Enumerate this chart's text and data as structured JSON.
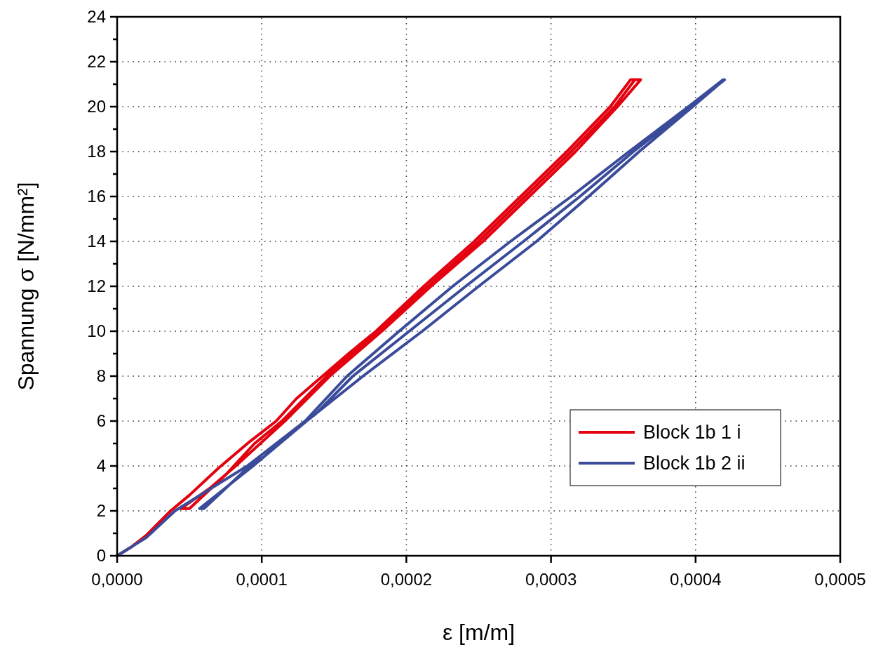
{
  "chart_data": {
    "type": "line",
    "xlabel": "ε [m/m]",
    "ylabel": "Spannung σ [N/mm²]",
    "xlim": [
      0,
      0.0005
    ],
    "ylim": [
      0,
      24
    ],
    "xticks": [
      {
        "value": 0,
        "label": "0,0000"
      },
      {
        "value": 0.0001,
        "label": "0,0001"
      },
      {
        "value": 0.0002,
        "label": "0,0002"
      },
      {
        "value": 0.0003,
        "label": "0,0003"
      },
      {
        "value": 0.0004,
        "label": "0,0004"
      },
      {
        "value": 0.0005,
        "label": "0,0005"
      }
    ],
    "yticks": [
      0,
      {
        "value": 1,
        "label": null
      },
      2,
      {
        "value": 3,
        "label": null
      },
      4,
      {
        "value": 5,
        "label": null
      },
      6,
      {
        "value": 7,
        "label": null
      },
      8,
      {
        "value": 9,
        "label": null
      },
      10,
      {
        "value": 11,
        "label": null
      },
      12,
      {
        "value": 13,
        "label": null
      },
      14,
      {
        "value": 15,
        "label": null
      },
      16,
      {
        "value": 17,
        "label": null
      },
      18,
      {
        "value": 19,
        "label": null
      },
      20,
      {
        "value": 21,
        "label": null
      },
      22,
      {
        "value": 23,
        "label": null
      },
      24
    ],
    "grid": true,
    "legend": "bottom right",
    "marker": "none",
    "line_style": "solid",
    "series": [
      {
        "name": "Block 1b 1 i",
        "color": "#e3000f",
        "x": [
          0,
          1e-05,
          2e-05,
          3.7e-05,
          5e-05,
          7e-05,
          9.2e-05,
          0.00011,
          0.000124,
          0.000142,
          0.00016,
          0.000179,
          0.000212,
          0.000247,
          0.000279,
          0.000311,
          0.000341,
          0.000355,
          0.000362,
          0.000346,
          0.000317,
          0.000285,
          0.000253,
          0.000217,
          0.000183,
          0.000147,
          0.000116,
          8.2e-05,
          6.4e-05,
          4.4e-05,
          5e-05,
          7.5e-05,
          9.5e-05,
          0.000114,
          0.000145,
          0.00018,
          0.000215,
          0.00025,
          0.000282,
          0.000314,
          0.000344,
          0.000358
        ],
        "values": [
          0,
          0.4,
          0.9,
          2,
          2.7,
          3.9,
          5.1,
          6,
          7,
          8,
          9,
          10,
          12,
          14,
          16,
          18,
          20,
          21.2,
          21.2,
          20,
          18,
          16,
          14,
          12,
          10,
          8,
          6,
          4,
          3,
          2.1,
          2.1,
          3.6,
          5,
          6,
          8,
          10,
          12,
          14,
          16,
          18,
          20,
          21.2
        ]
      },
      {
        "name": "Block 1b 2 ii",
        "color": "#3a4b9a",
        "x": [
          0,
          2e-05,
          4e-05,
          6e-05,
          9e-05,
          0.00013,
          0.000159,
          0.000195,
          0.000232,
          0.000272,
          0.000314,
          0.000354,
          0.000395,
          0.000419,
          0.000418,
          0.000398,
          0.000361,
          0.000326,
          0.00029,
          0.00025,
          0.000211,
          0.00017,
          0.000131,
          9.4e-05,
          5.7e-05,
          6e-05,
          0.0001,
          0.000137,
          0.000163,
          0.000202,
          0.000241,
          0.000281,
          0.00032,
          0.000357,
          0.000397,
          0.00042
        ],
        "values": [
          0,
          0.8,
          2,
          2.8,
          4,
          6,
          8,
          10,
          12,
          14,
          16,
          18,
          20,
          21.2,
          21.1,
          20,
          18,
          16,
          14,
          12,
          10,
          8,
          6,
          4,
          2.1,
          2.1,
          4.5,
          6.3,
          8,
          10,
          12,
          14,
          16,
          18,
          20,
          21.2
        ]
      }
    ]
  }
}
